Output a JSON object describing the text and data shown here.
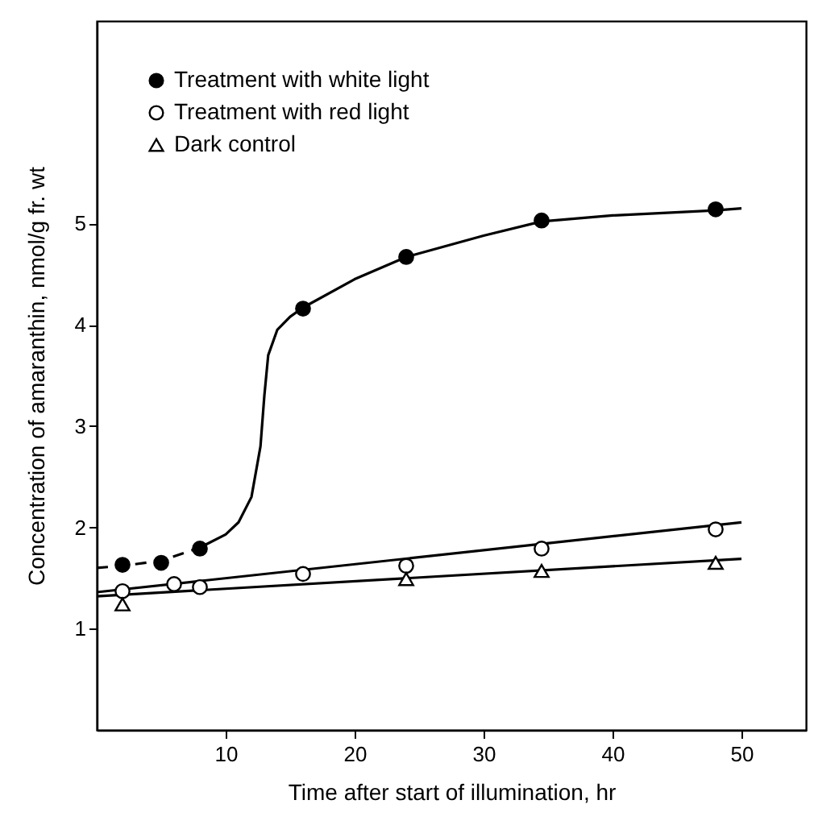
{
  "chart_data": {
    "type": "scatter",
    "xlabel": "Time after start of illumination, hr",
    "ylabel": "Concentration of amaranthin, nmol/g fr. wt",
    "xlim": [
      0,
      55
    ],
    "ylim": [
      0,
      7
    ],
    "xticks": [
      10,
      20,
      30,
      40,
      50
    ],
    "yticks": [
      1,
      2,
      3,
      4,
      5
    ],
    "grid": false,
    "legend": "top left",
    "series": [
      {
        "type": "line",
        "color": "#000000",
        "line_style": "dashed",
        "x": [
          0,
          2,
          5,
          8
        ],
        "values": [
          1.6,
          1.62,
          1.67,
          1.8
        ]
      },
      {
        "type": "line",
        "color": "#000000",
        "line_style": "solid",
        "x": [
          8,
          10,
          11,
          12,
          12.7,
          13,
          13.3,
          14,
          15,
          16,
          20,
          24,
          30,
          34.5,
          40,
          48,
          50
        ],
        "values": [
          1.8,
          1.93,
          2.05,
          2.3,
          2.8,
          3.3,
          3.7,
          3.95,
          4.08,
          4.17,
          4.45,
          4.67,
          4.88,
          5.02,
          5.08,
          5.13,
          5.15
        ]
      },
      {
        "type": "line",
        "color": "#000000",
        "line_style": "solid",
        "x": [
          0,
          50
        ],
        "values": [
          1.36,
          2.05
        ]
      },
      {
        "type": "line",
        "color": "#000000",
        "line_style": "solid",
        "x": [
          0,
          50
        ],
        "values": [
          1.32,
          1.69
        ]
      },
      {
        "name": "Treatment with white light",
        "color": "#000000",
        "marker": "circle",
        "x": [
          2,
          5,
          8,
          16,
          24,
          34.5,
          48
        ],
        "values": [
          1.63,
          1.65,
          1.79,
          4.16,
          4.67,
          5.03,
          5.14
        ]
      },
      {
        "name": "Treatment with red light",
        "color": "#ffffff",
        "marker": "circle",
        "x": [
          2,
          6,
          8,
          16,
          24,
          34.5,
          48
        ],
        "values": [
          1.37,
          1.44,
          1.41,
          1.54,
          1.62,
          1.79,
          1.98
        ]
      },
      {
        "name": "Dark control",
        "color": "#ffffff",
        "marker": "triangle",
        "x": [
          2,
          24,
          34.5,
          48
        ],
        "values": [
          1.24,
          1.49,
          1.57,
          1.65
        ]
      }
    ]
  }
}
